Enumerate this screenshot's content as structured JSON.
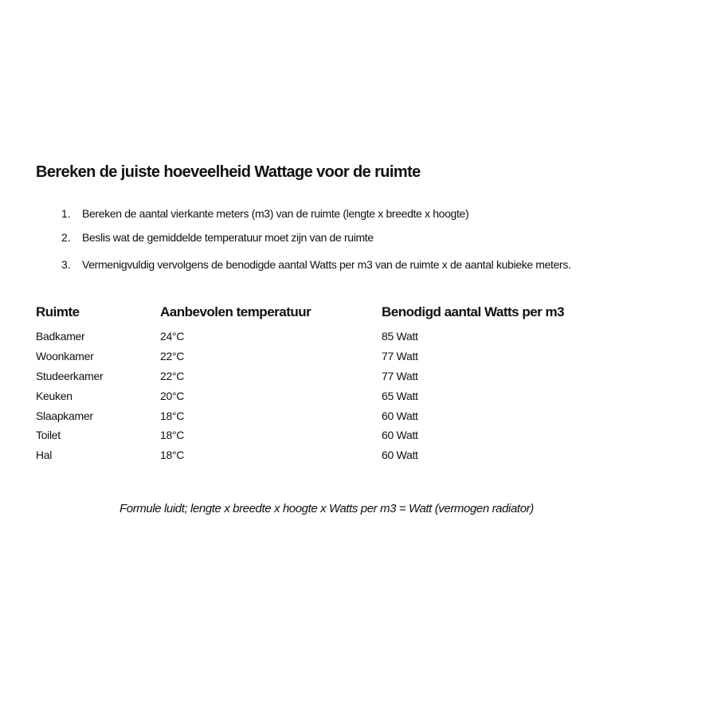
{
  "title": "Bereken de juiste hoeveelheid Wattage voor de ruimte",
  "steps": [
    {
      "num": "1.",
      "text": "Bereken de aantal vierkante meters (m3) van de ruimte (lengte x breedte x hoogte)"
    },
    {
      "num": "2.",
      "text": "Beslis wat de gemiddelde temperatuur moet zijn van de ruimte"
    },
    {
      "num": "3.",
      "text": "Vermenigvuldig vervolgens de benodigde aantal Watts per m3 van de ruimte x de aantal kubieke meters."
    }
  ],
  "table": {
    "headers": [
      "Ruimte",
      "Aanbevolen temperatuur",
      "Benodigd aantal Watts per m3"
    ],
    "rows": [
      [
        "Badkamer",
        "24°C",
        "85 Watt"
      ],
      [
        "Woonkamer",
        "22°C",
        "77 Watt"
      ],
      [
        "Studeerkamer",
        "22°C",
        "77 Watt"
      ],
      [
        "Keuken",
        "20°C",
        "65 Watt"
      ],
      [
        "Slaapkamer",
        "18°C",
        "60 Watt"
      ],
      [
        "Toilet",
        "18°C",
        "60 Watt"
      ],
      [
        "Hal",
        "18°C",
        "60 Watt"
      ]
    ]
  },
  "formula": "Formule luidt; lengte x breedte x hoogte x Watts per m3 = Watt (vermogen radiator)"
}
